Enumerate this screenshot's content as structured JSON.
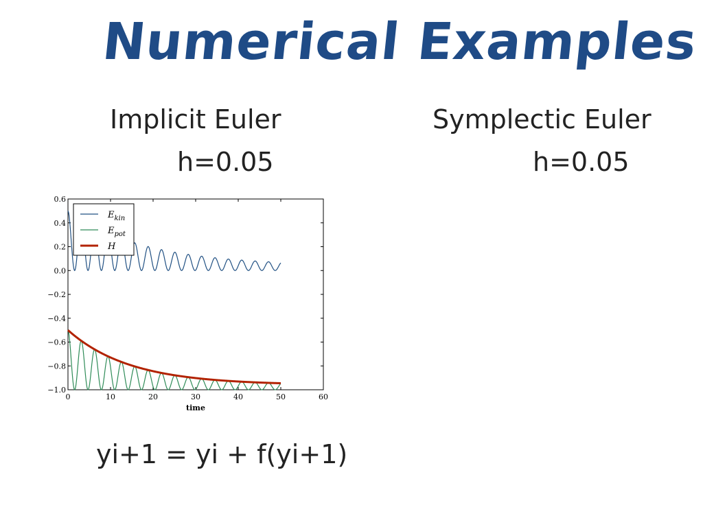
{
  "title": "Numerical Examples",
  "left": {
    "method": "Implicit Euler",
    "step": "h=0.05",
    "formula": "yi+1 = yi + f(yi+1)"
  },
  "right": {
    "method": "Symplectic Euler",
    "step": "h=0.05"
  },
  "colors": {
    "title": "#1f4b86",
    "ekin": "#1f4f82",
    "epot": "#2e8b57",
    "H": "#b22200"
  },
  "chart_data": {
    "type": "line",
    "xlabel": "time",
    "ylabel": "",
    "xlim": [
      0,
      60
    ],
    "ylim": [
      -1.0,
      0.6
    ],
    "xticks": [
      "0",
      "10",
      "20",
      "30",
      "40",
      "50",
      "60"
    ],
    "yticks": [
      "0.6",
      "0.4",
      "0.2",
      "0.0",
      "−0.2",
      "−0.4",
      "−0.6",
      "−0.8",
      "−1.0"
    ],
    "legend_position": "top-left",
    "grid": false,
    "series": [
      {
        "name": "E_kin",
        "label_main": "E",
        "label_sub": "kin",
        "description": "oscillates between 0 and a decaying amplitude",
        "samples": {
          "t_start": 0,
          "t_end": 50,
          "omega": 1.0,
          "envelope_start": 0.5,
          "envelope_end": 0.04
        }
      },
      {
        "name": "E_pot",
        "label_main": "E",
        "label_sub": "pot",
        "description": "oscillates between -1.0 and H",
        "samples": {
          "t_start": 0,
          "t_end": 50,
          "omega": 1.0
        }
      },
      {
        "name": "H",
        "label_main": "H",
        "label_sub": "",
        "description": "total energy decaying from -0.5 toward -0.96",
        "samples": {
          "t_start": 0,
          "t_end": 50,
          "start": -0.5,
          "end": -0.96
        }
      }
    ]
  }
}
